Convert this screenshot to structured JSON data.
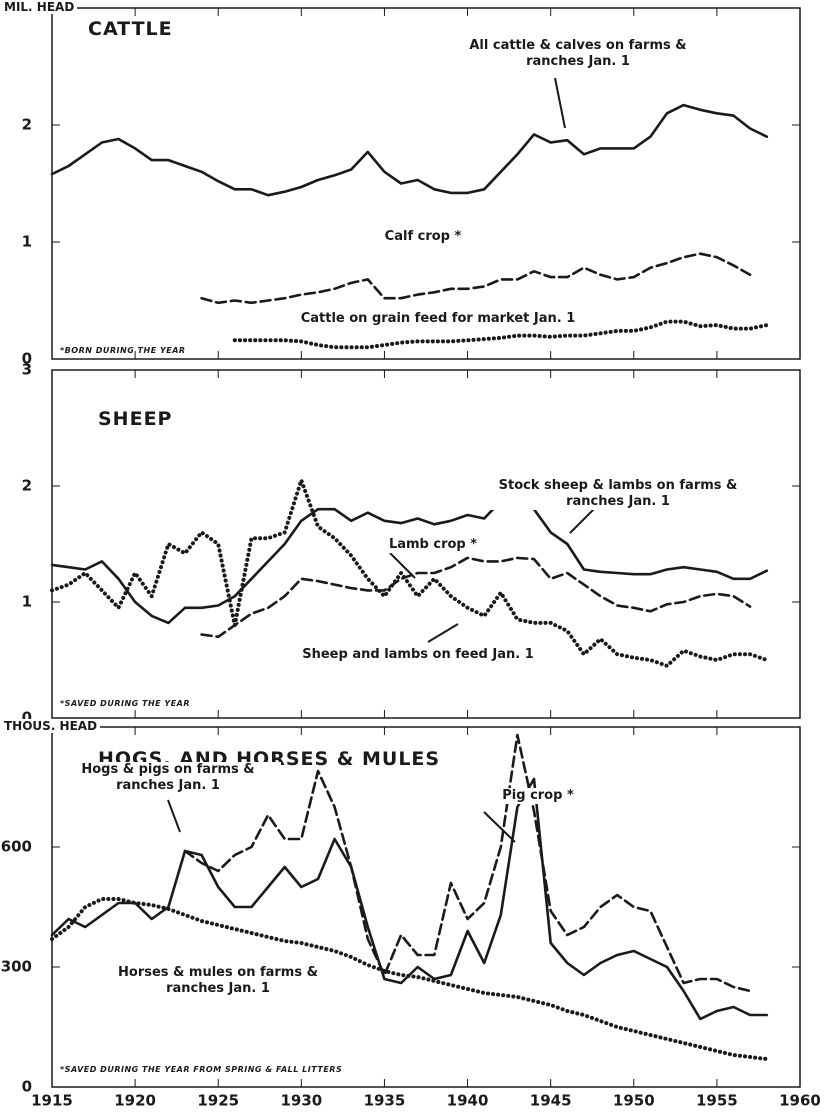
{
  "chart_data": [
    {
      "type": "line",
      "title": "CATTLE",
      "y_label": "MIL. HEAD",
      "note": "*BORN DURING THE YEAR",
      "x": [
        1915,
        1916,
        1917,
        1918,
        1919,
        1920,
        1921,
        1922,
        1923,
        1924,
        1925,
        1926,
        1927,
        1928,
        1929,
        1930,
        1931,
        1932,
        1933,
        1934,
        1935,
        1936,
        1937,
        1938,
        1939,
        1940,
        1941,
        1942,
        1943,
        1944,
        1945,
        1946,
        1947,
        1948,
        1949,
        1950,
        1951,
        1952,
        1953,
        1954,
        1955,
        1956,
        1957,
        1958
      ],
      "xlim": [
        1915,
        1960
      ],
      "ylim": [
        0,
        3
      ],
      "yticks": [
        0,
        1,
        2
      ],
      "series": [
        {
          "name": "All cattle & calves on farms & ranches Jan. 1",
          "color": "#1a1a1a",
          "style": "solid",
          "values": [
            1.58,
            1.65,
            1.75,
            1.85,
            1.88,
            1.8,
            1.7,
            1.7,
            1.65,
            1.6,
            1.52,
            1.45,
            1.45,
            1.4,
            1.43,
            1.47,
            1.53,
            1.57,
            1.62,
            1.77,
            1.6,
            1.5,
            1.53,
            1.45,
            1.42,
            1.42,
            1.45,
            1.6,
            1.75,
            1.92,
            1.85,
            1.87,
            1.75,
            1.8,
            1.8,
            1.8,
            1.9,
            2.1,
            2.17,
            2.13,
            2.1,
            2.08,
            1.97,
            1.9
          ]
        },
        {
          "name": "Calf crop *",
          "color": "#1a1a1a",
          "style": "dashed",
          "values": [
            null,
            null,
            null,
            null,
            null,
            null,
            null,
            null,
            null,
            0.52,
            0.48,
            0.5,
            0.48,
            0.5,
            0.52,
            0.55,
            0.57,
            0.6,
            0.65,
            0.68,
            0.52,
            0.52,
            0.55,
            0.57,
            0.6,
            0.6,
            0.62,
            0.68,
            0.68,
            0.75,
            0.7,
            0.7,
            0.78,
            0.72,
            0.68,
            0.7,
            0.78,
            0.82,
            0.87,
            0.9,
            0.87,
            0.8,
            0.72,
            null
          ]
        },
        {
          "name": "Cattle on grain feed for market Jan. 1",
          "color": "#1a1a1a",
          "style": "dotted",
          "values": [
            null,
            null,
            null,
            null,
            null,
            null,
            null,
            null,
            null,
            null,
            null,
            0.16,
            0.16,
            0.16,
            0.16,
            0.15,
            0.12,
            0.1,
            0.1,
            0.1,
            0.12,
            0.14,
            0.15,
            0.15,
            0.15,
            0.16,
            0.17,
            0.18,
            0.2,
            0.2,
            0.19,
            0.2,
            0.2,
            0.22,
            0.24,
            0.24,
            0.27,
            0.32,
            0.32,
            0.28,
            0.29,
            0.26,
            0.26,
            0.29
          ]
        }
      ]
    },
    {
      "type": "line",
      "title": "SHEEP",
      "note": "*SAVED DURING THE YEAR",
      "x": [
        1915,
        1916,
        1917,
        1918,
        1919,
        1920,
        1921,
        1922,
        1923,
        1924,
        1925,
        1926,
        1927,
        1928,
        1929,
        1930,
        1931,
        1932,
        1933,
        1934,
        1935,
        1936,
        1937,
        1938,
        1939,
        1940,
        1941,
        1942,
        1943,
        1944,
        1945,
        1946,
        1947,
        1948,
        1949,
        1950,
        1951,
        1952,
        1953,
        1954,
        1955,
        1956,
        1957,
        1958
      ],
      "xlim": [
        1915,
        1960
      ],
      "ylim": [
        0,
        3
      ],
      "yticks": [
        0,
        1,
        2,
        3
      ],
      "series": [
        {
          "name": "Stock sheep & lambs on farms & ranches Jan. 1",
          "color": "#1a1a1a",
          "style": "solid",
          "values": [
            1.32,
            1.3,
            1.28,
            1.35,
            1.2,
            1.0,
            0.88,
            0.82,
            0.95,
            0.95,
            0.97,
            1.05,
            1.2,
            1.35,
            1.5,
            1.7,
            1.8,
            1.8,
            1.7,
            1.77,
            1.7,
            1.68,
            1.72,
            1.67,
            1.7,
            1.75,
            1.72,
            1.87,
            1.85,
            1.8,
            1.6,
            1.5,
            1.28,
            1.26,
            1.25,
            1.24,
            1.24,
            1.28,
            1.3,
            1.28,
            1.26,
            1.2,
            1.2,
            1.27
          ]
        },
        {
          "name": "Lamb crop *",
          "color": "#1a1a1a",
          "style": "dashed",
          "values": [
            null,
            null,
            null,
            null,
            null,
            null,
            null,
            null,
            null,
            0.72,
            0.7,
            0.8,
            0.9,
            0.95,
            1.05,
            1.2,
            1.18,
            1.15,
            1.12,
            1.1,
            1.1,
            1.2,
            1.25,
            1.25,
            1.3,
            1.38,
            1.35,
            1.35,
            1.38,
            1.37,
            1.2,
            1.25,
            1.15,
            1.05,
            0.97,
            0.95,
            0.92,
            0.98,
            1.0,
            1.05,
            1.07,
            1.05,
            0.96,
            null
          ]
        },
        {
          "name": "Sheep and lambs on feed Jan. 1",
          "color": "#1a1a1a",
          "style": "dotted",
          "values": [
            1.1,
            1.15,
            1.25,
            1.1,
            0.95,
            1.25,
            1.05,
            1.5,
            1.42,
            1.6,
            1.5,
            0.8,
            1.55,
            1.55,
            1.6,
            2.05,
            1.65,
            1.55,
            1.4,
            1.2,
            1.05,
            1.25,
            1.05,
            1.2,
            1.05,
            0.95,
            0.88,
            1.08,
            0.85,
            0.82,
            0.82,
            0.75,
            0.55,
            0.68,
            0.55,
            0.52,
            0.5,
            0.45,
            0.58,
            0.53,
            0.5,
            0.55,
            0.55,
            0.5
          ]
        }
      ]
    },
    {
      "type": "line",
      "title": "HOGS, AND HORSES & MULES",
      "y_label": "THOUS. HEAD",
      "note": "*SAVED DURING THE YEAR FROM SPRING & FALL LITTERS",
      "x": [
        1915,
        1916,
        1917,
        1918,
        1919,
        1920,
        1921,
        1922,
        1923,
        1924,
        1925,
        1926,
        1927,
        1928,
        1929,
        1930,
        1931,
        1932,
        1933,
        1934,
        1935,
        1936,
        1937,
        1938,
        1939,
        1940,
        1941,
        1942,
        1943,
        1944,
        1945,
        1946,
        1947,
        1948,
        1949,
        1950,
        1951,
        1952,
        1953,
        1954,
        1955,
        1956,
        1957,
        1958
      ],
      "xlim": [
        1915,
        1960
      ],
      "xticks": [
        1915,
        1920,
        1925,
        1930,
        1935,
        1940,
        1945,
        1950,
        1955,
        1960
      ],
      "ylim": [
        0,
        900
      ],
      "yticks": [
        0,
        300,
        600
      ],
      "series": [
        {
          "name": "Hogs & pigs on farms & ranches Jan. 1",
          "color": "#1a1a1a",
          "style": "solid",
          "values": [
            380,
            420,
            400,
            430,
            460,
            460,
            420,
            450,
            590,
            580,
            500,
            450,
            450,
            500,
            550,
            500,
            520,
            620,
            550,
            400,
            270,
            260,
            300,
            270,
            280,
            390,
            310,
            430,
            700,
            770,
            360,
            310,
            280,
            310,
            330,
            340,
            320,
            300,
            240,
            170,
            190,
            200,
            180,
            180
          ]
        },
        {
          "name": "Pig crop *",
          "color": "#1a1a1a",
          "style": "dashed",
          "values": [
            null,
            null,
            null,
            null,
            null,
            null,
            null,
            null,
            590,
            560,
            540,
            580,
            600,
            680,
            620,
            620,
            790,
            700,
            550,
            370,
            280,
            380,
            330,
            330,
            510,
            420,
            460,
            600,
            880,
            690,
            440,
            380,
            400,
            450,
            480,
            450,
            440,
            350,
            260,
            270,
            270,
            250,
            240,
            null
          ]
        },
        {
          "name": "Horses & mules on farms & ranches Jan. 1",
          "color": "#1a1a1a",
          "style": "dotted",
          "values": [
            370,
            400,
            450,
            470,
            470,
            460,
            455,
            445,
            430,
            415,
            405,
            395,
            385,
            375,
            365,
            360,
            350,
            340,
            325,
            305,
            290,
            280,
            275,
            265,
            255,
            245,
            235,
            230,
            225,
            215,
            205,
            190,
            180,
            165,
            150,
            140,
            130,
            120,
            110,
            100,
            90,
            80,
            75,
            70
          ]
        }
      ]
    }
  ]
}
